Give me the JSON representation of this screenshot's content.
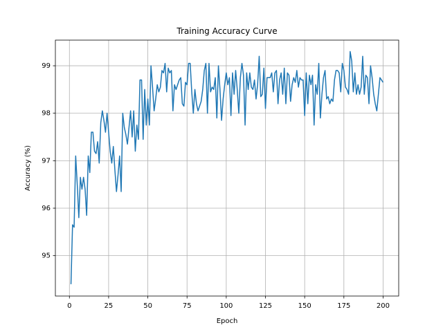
{
  "chart_data": {
    "type": "line",
    "title": "Training Accuracy Curve",
    "x_label": "Epoch",
    "y_label": "Accuracy (%)",
    "x": [
      1,
      2,
      3,
      4,
      5,
      6,
      7,
      8,
      9,
      10,
      11,
      12,
      13,
      14,
      15,
      16,
      17,
      18,
      19,
      20,
      21,
      22,
      23,
      24,
      25,
      26,
      27,
      28,
      29,
      30,
      31,
      32,
      33,
      34,
      35,
      36,
      37,
      38,
      39,
      40,
      41,
      42,
      43,
      44,
      45,
      46,
      47,
      48,
      49,
      50,
      51,
      52,
      53,
      54,
      55,
      56,
      57,
      58,
      59,
      60,
      61,
      62,
      63,
      64,
      65,
      66,
      67,
      68,
      69,
      70,
      71,
      72,
      73,
      74,
      75,
      76,
      77,
      78,
      79,
      80,
      81,
      82,
      83,
      84,
      85,
      86,
      87,
      88,
      89,
      90,
      91,
      92,
      93,
      94,
      95,
      96,
      97,
      98,
      99,
      100,
      101,
      102,
      103,
      104,
      105,
      106,
      107,
      108,
      109,
      110,
      111,
      112,
      113,
      114,
      115,
      116,
      117,
      118,
      119,
      120,
      121,
      122,
      123,
      124,
      125,
      126,
      127,
      128,
      129,
      130,
      131,
      132,
      133,
      134,
      135,
      136,
      137,
      138,
      139,
      140,
      141,
      142,
      143,
      144,
      145,
      146,
      147,
      148,
      149,
      150,
      151,
      152,
      153,
      154,
      155,
      156,
      157,
      158,
      159,
      160,
      161,
      162,
      163,
      164,
      165,
      166,
      167,
      168,
      169,
      170,
      171,
      172,
      173,
      174,
      175,
      176,
      177,
      178,
      179,
      180,
      181,
      182,
      183,
      184,
      185,
      186,
      187,
      188,
      189,
      190,
      191,
      192,
      193,
      194,
      195,
      196,
      197,
      198,
      199,
      200
    ],
    "series": [
      {
        "name": "Accuracy",
        "color": "#1f77b4",
        "values": [
          94.4,
          95.65,
          95.6,
          97.1,
          96.5,
          95.8,
          96.65,
          96.4,
          96.65,
          96.4,
          95.85,
          97.1,
          96.75,
          97.6,
          97.6,
          97.2,
          97.15,
          97.4,
          96.95,
          97.8,
          98.05,
          97.85,
          97.6,
          98.0,
          97.6,
          97.2,
          96.95,
          97.3,
          96.8,
          96.35,
          96.7,
          97.1,
          96.35,
          98.0,
          97.7,
          97.55,
          97.35,
          97.7,
          98.05,
          97.5,
          98.05,
          97.2,
          97.75,
          97.45,
          98.7,
          98.7,
          97.45,
          98.5,
          97.75,
          98.3,
          97.75,
          99.0,
          98.55,
          98.05,
          98.3,
          98.6,
          98.45,
          98.55,
          98.9,
          98.85,
          99.05,
          98.45,
          98.95,
          98.85,
          98.9,
          98.05,
          98.6,
          98.5,
          98.6,
          98.7,
          98.75,
          98.2,
          98.15,
          98.65,
          98.6,
          99.05,
          99.05,
          98.45,
          98.0,
          98.5,
          98.2,
          98.05,
          98.15,
          98.25,
          98.5,
          98.9,
          99.05,
          98.0,
          99.05,
          98.45,
          98.55,
          98.5,
          98.75,
          97.9,
          99.0,
          98.5,
          97.85,
          98.3,
          98.6,
          98.85,
          98.6,
          98.75,
          97.95,
          98.85,
          98.4,
          98.9,
          98.5,
          98.0,
          98.75,
          99.05,
          98.8,
          97.75,
          98.85,
          98.5,
          98.85,
          98.55,
          98.5,
          98.7,
          98.3,
          98.6,
          99.2,
          98.35,
          98.4,
          98.95,
          98.1,
          98.75,
          98.75,
          98.75,
          98.85,
          98.45,
          98.85,
          98.9,
          98.2,
          98.7,
          98.85,
          98.4,
          98.95,
          98.2,
          98.85,
          98.8,
          98.25,
          98.6,
          98.75,
          98.65,
          98.9,
          98.55,
          98.75,
          98.7,
          98.7,
          97.95,
          98.85,
          98.2,
          98.8,
          98.6,
          98.8,
          97.75,
          98.6,
          98.4,
          99.05,
          97.9,
          98.4,
          98.75,
          98.9,
          98.3,
          98.35,
          98.2,
          98.3,
          98.25,
          98.7,
          98.9,
          98.9,
          98.85,
          98.45,
          99.05,
          98.9,
          98.55,
          98.5,
          98.4,
          99.3,
          99.1,
          98.45,
          98.85,
          98.4,
          98.6,
          98.4,
          98.55,
          99.2,
          98.4,
          98.8,
          98.75,
          98.2,
          99.0,
          98.75,
          98.4,
          98.2,
          98.05,
          98.4,
          98.75,
          98.7,
          98.65
        ]
      }
    ],
    "xlim": [
      -8.95,
      209.95
    ],
    "xticks": [
      0,
      25,
      50,
      75,
      100,
      125,
      150,
      175,
      200
    ],
    "ylim": [
      94.15,
      99.54
    ],
    "yticks": [
      95,
      96,
      97,
      98,
      99
    ],
    "grid": true
  }
}
